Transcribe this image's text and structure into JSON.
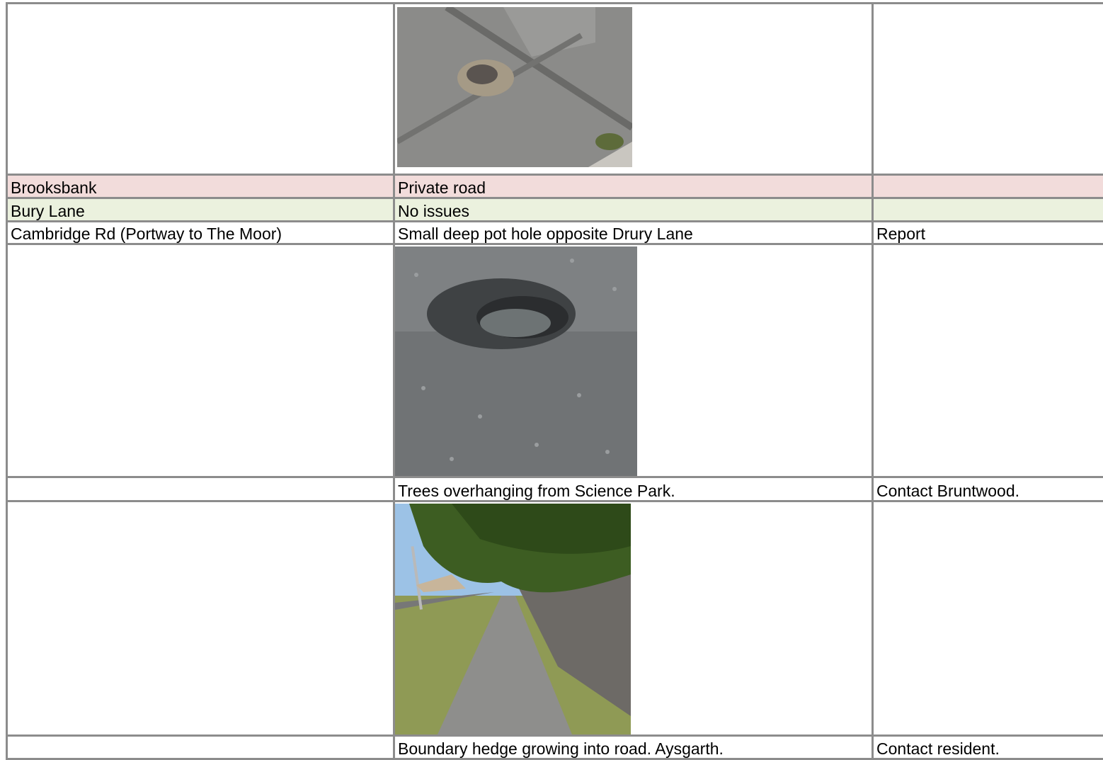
{
  "table": {
    "rows": [
      [
        "Brooksbank",
        "Private road",
        null
      ],
      [
        "Bury Lane",
        "No issues",
        null
      ],
      [
        "Cambridge Rd (Portway to The Moor)",
        "Small deep pot hole opposite Drury Lane",
        "Report"
      ],
      [
        null,
        "Trees overhanging from Science Park.",
        "Contact Bruntwood."
      ],
      [
        null,
        "Boundary hedge growing into road. Aysgarth.",
        "Contact resident."
      ]
    ]
  }
}
